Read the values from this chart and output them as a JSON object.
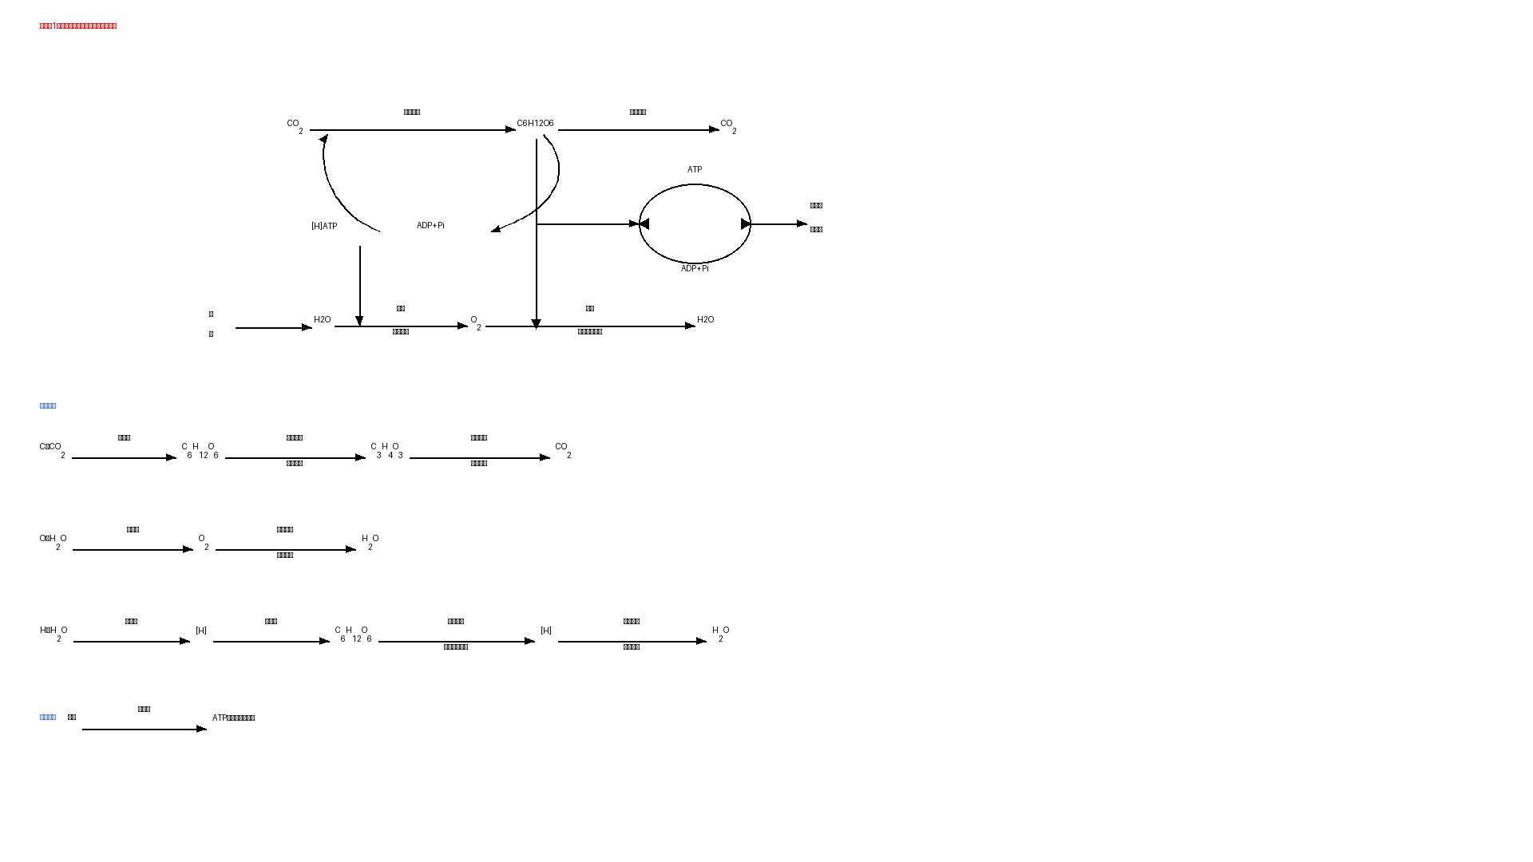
{
  "bg_color": "#FFFFFF",
  "title_color": "#CC0000",
  "blue_color": "#4169CD",
  "black_color": "#000000",
  "title": "【题型1】光合作用与细胞呼吸的过程比较"
}
